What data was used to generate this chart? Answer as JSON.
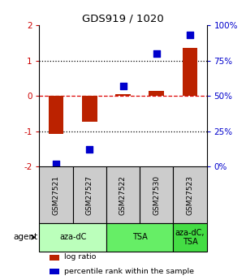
{
  "title": "GDS919 / 1020",
  "samples": [
    "GSM27521",
    "GSM27527",
    "GSM27522",
    "GSM27530",
    "GSM27523"
  ],
  "log_ratios": [
    -1.08,
    -0.72,
    0.05,
    0.15,
    1.35
  ],
  "percentile_ranks": [
    2,
    12,
    57,
    80,
    93
  ],
  "agents": [
    {
      "label": "aza-dC",
      "cols": [
        0,
        1
      ],
      "color": "#bbffbb"
    },
    {
      "label": "TSA",
      "cols": [
        2,
        3
      ],
      "color": "#66ee66"
    },
    {
      "label": "aza-dC,\nTSA",
      "cols": [
        4
      ],
      "color": "#44dd44"
    }
  ],
  "bar_color": "#bb2200",
  "dot_color": "#0000cc",
  "ylim_left": [
    -2,
    2
  ],
  "ylim_right": [
    0,
    100
  ],
  "yticks_left": [
    -2,
    -1,
    0,
    1,
    2
  ],
  "yticks_right": [
    0,
    25,
    50,
    75,
    100
  ],
  "ytick_labels_left": [
    "-2",
    "-1",
    "0",
    "1",
    "2"
  ],
  "ytick_labels_right": [
    "0%",
    "25%",
    "50%",
    "75%",
    "100%"
  ],
  "hlines": [
    {
      "y": -1,
      "color": "black",
      "ls": "dotted",
      "lw": 0.9
    },
    {
      "y": 0,
      "color": "#dd0000",
      "ls": "dashed",
      "lw": 0.9
    },
    {
      "y": 1,
      "color": "black",
      "ls": "dotted",
      "lw": 0.9
    }
  ],
  "ylabel_left_color": "#cc0000",
  "ylabel_right_color": "#0000cc",
  "legend_items": [
    {
      "label": "log ratio",
      "color": "#bb2200"
    },
    {
      "label": "percentile rank within the sample",
      "color": "#0000cc"
    }
  ],
  "bar_width": 0.45,
  "dot_size": 35,
  "sample_box_color": "#cccccc",
  "agent_label": "agent"
}
